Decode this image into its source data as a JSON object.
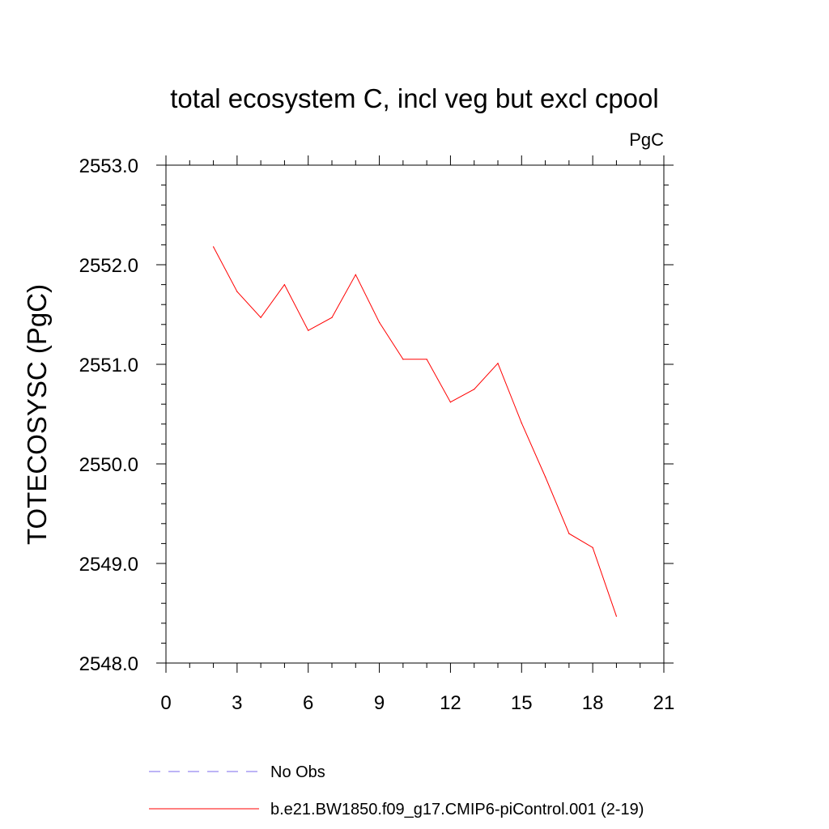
{
  "chart_data": {
    "type": "line",
    "title": "total ecosystem C, incl veg but excl cpool",
    "units_label": "PgC",
    "ylabel": "TOTECOSYSC  (PgC)",
    "xlabel": "",
    "xlim": [
      0,
      21
    ],
    "ylim": [
      2548.0,
      2553.0
    ],
    "x_ticks": [
      0,
      3,
      6,
      9,
      12,
      15,
      18,
      21
    ],
    "x_tick_labels": [
      "0",
      "3",
      "6",
      "9",
      "12",
      "15",
      "18",
      "21"
    ],
    "y_ticks": [
      2548.0,
      2549.0,
      2550.0,
      2551.0,
      2552.0,
      2553.0
    ],
    "y_tick_labels": [
      "2548.0",
      "2549.0",
      "2550.0",
      "2551.0",
      "2552.0",
      "2553.0"
    ],
    "grid": false,
    "legend_position": "bottom",
    "series": [
      {
        "name": "b.e21.BW1850.f09_g17.CMIP6-piControl.001 (2-19)",
        "color": "#ff0000",
        "dash": "solid",
        "x": [
          2,
          3,
          4,
          5,
          6,
          7,
          8,
          9,
          10,
          11,
          12,
          13,
          14,
          15,
          16,
          17,
          18,
          19
        ],
        "y": [
          2552.18,
          2551.73,
          2551.47,
          2551.8,
          2551.34,
          2551.47,
          2551.9,
          2551.42,
          2551.05,
          2551.05,
          2550.62,
          2550.75,
          2551.01,
          2550.41,
          2549.87,
          2549.3,
          2549.16,
          2548.47
        ]
      }
    ],
    "legend": [
      {
        "label": "No Obs",
        "color": "#7b68ee",
        "dash": "dashed"
      },
      {
        "label": "b.e21.BW1850.f09_g17.CMIP6-piControl.001 (2-19)",
        "color": "#ff0000",
        "dash": "solid"
      }
    ]
  }
}
